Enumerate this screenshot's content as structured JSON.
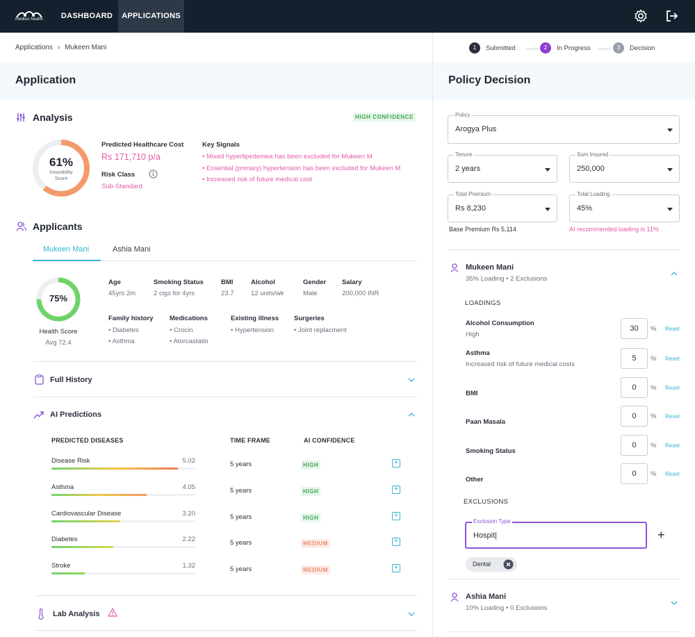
{
  "nav": {
    "logo_text": "medius health",
    "tabs": [
      {
        "label": "DASHBOARD"
      },
      {
        "label": "APPLICATIONS"
      }
    ]
  },
  "breadcrumb": {
    "root": "Applications",
    "current": "Mukeen Mani"
  },
  "stepper": {
    "steps": [
      {
        "num": "1",
        "label": "Submitted",
        "color": "#2b2f3a"
      },
      {
        "num": "2",
        "label": "In Progress",
        "color": "#8a3fd1"
      },
      {
        "num": "3",
        "label": "Decision",
        "color": "#9aa0aa"
      }
    ]
  },
  "application": {
    "title": "Application"
  },
  "analysis": {
    "title": "Analysis",
    "confidence_badge": "HIGH CONFIDENCE",
    "score_value": "61%",
    "score_label_1": "Insurability",
    "score_label_2": "Score",
    "score": 0.61,
    "predicted_cost_label": "Predicted Healthcare Cost",
    "predicted_cost_value": "Rs 171,710 p/a",
    "risk_class_label": "Risk Class",
    "risk_class_value": "Sub-Standard",
    "key_signals_label": "Key Signals",
    "signals": [
      "• Mixed hyperlipedemea has been excluded for Mukeen M",
      "• Essential (primary) hypertension has been excluded for Mukeen M",
      "• Increased risk of future medical cost"
    ]
  },
  "applicants": {
    "title": "Applicants",
    "tabs": [
      "Mukeen Mani",
      "Ashia Mani"
    ],
    "health_score": {
      "value": "75%",
      "fraction": 0.75,
      "label": "Health Score",
      "avg": "Avg 72.4"
    },
    "details": [
      {
        "label": "Age",
        "value": "45yrs 2m"
      },
      {
        "label": "Smoking Status",
        "value": "2 cigs for 4yrs"
      },
      {
        "label": "BMI",
        "value": "23.7"
      },
      {
        "label": "Alcohol",
        "value": "12 units/wk"
      },
      {
        "label": "Gender",
        "value": "Male"
      },
      {
        "label": "Salary",
        "value": "200,000 INR"
      }
    ],
    "family_history": {
      "label": "Family history",
      "items": [
        "• Diabetes",
        "• Asthma"
      ]
    },
    "medications": {
      "label": "Medications",
      "items": [
        "• Crocin",
        "• Atorcastatin"
      ]
    },
    "existing_illness": {
      "label": "Existing illness",
      "items": [
        "• Hypertension"
      ]
    },
    "surgeries": {
      "label": "Surgeries",
      "items": [
        "• Joint replacment"
      ]
    }
  },
  "full_history": {
    "title": "Full History"
  },
  "ai_predictions": {
    "title": "AI Predictions",
    "headers": [
      "PREDICTED DISEASES",
      "TIME FRAME",
      "AI CONFIDENCE"
    ],
    "rows": [
      {
        "name": "Disease Risk",
        "score": "5.02",
        "fraction": 0.88,
        "gradient": "linear-gradient(90deg,#6fd36b,#f0c84b,#f07b50)",
        "time": "5 years",
        "confidence": "HIGH",
        "level": "high"
      },
      {
        "name": "Asthma",
        "score": "4.05",
        "fraction": 0.66,
        "gradient": "linear-gradient(90deg,#6fd36b,#f0c84b,#f09a60)",
        "time": "5 years",
        "confidence": "HIGH",
        "level": "high"
      },
      {
        "name": "Cardiovascular Disease",
        "score": "3.20",
        "fraction": 0.48,
        "gradient": "linear-gradient(90deg,#6fd36b,#e3d24b)",
        "time": "5 years",
        "confidence": "HIGH",
        "level": "high"
      },
      {
        "name": "Diabetes",
        "score": "2.22",
        "fraction": 0.43,
        "gradient": "linear-gradient(90deg,#6fd36b,#d8d84b)",
        "time": "5 years",
        "confidence": "MEDIUM",
        "level": "med"
      },
      {
        "name": "Stroke",
        "score": "1.32",
        "fraction": 0.23,
        "gradient": "linear-gradient(90deg,#6fd36b,#8fd85b)",
        "time": "5 years",
        "confidence": "MEDIUM",
        "level": "med"
      }
    ]
  },
  "lab_analysis": {
    "title": "Lab Analysis"
  },
  "policy": {
    "title": "Policy Decision",
    "policy_field": {
      "label": "Policy",
      "value": "Arogya Plus"
    },
    "tenure": {
      "label": "Tenure",
      "value": "2 years"
    },
    "sum_insured": {
      "label": "Sum Insured",
      "value": "250,000"
    },
    "total_premium": {
      "label": "Total Premium",
      "value": "Rs 8,230"
    },
    "total_loading": {
      "label": "Total Loading",
      "value": "45%"
    },
    "base_premium_note": "Base Premium Rs 5,114",
    "ai_loading_note": "AI recommended loading is 11%"
  },
  "applicant_1": {
    "name": "Mukeen Mani",
    "summary": "35% Loading • 2 Exclusions",
    "loadings_title": "LOADINGS",
    "loadings": [
      {
        "label": "Alcohol Consumption",
        "sub": "High",
        "value": "30"
      },
      {
        "label": "Asthma",
        "sub": "Increased risk of future medical costs",
        "value": "5"
      },
      {
        "label": "BMI",
        "sub": "",
        "value": "0"
      },
      {
        "label": "Paan Masala",
        "sub": "",
        "value": "0"
      },
      {
        "label": "Smoking Status",
        "sub": "",
        "value": "0"
      },
      {
        "label": "Other",
        "sub": "",
        "value": "0"
      }
    ],
    "pct": "%",
    "reset": "Reset",
    "exclusions_title": "EXCLUSIONS",
    "exclusion_type_label": "Exclusion Type",
    "exclusion_input": "Hospit|",
    "add_symbol": "+",
    "chips": [
      "Dental"
    ]
  },
  "applicant_2": {
    "name": "Ashia Mani",
    "summary": "10% Loading • 0 Exclusions"
  },
  "colors": {
    "accent": "#36b3cf",
    "pink": "#e45aa6",
    "purple": "#8a52d6",
    "nav": "#14202e",
    "orange": "#f39a6b",
    "green": "#6fd36b"
  }
}
